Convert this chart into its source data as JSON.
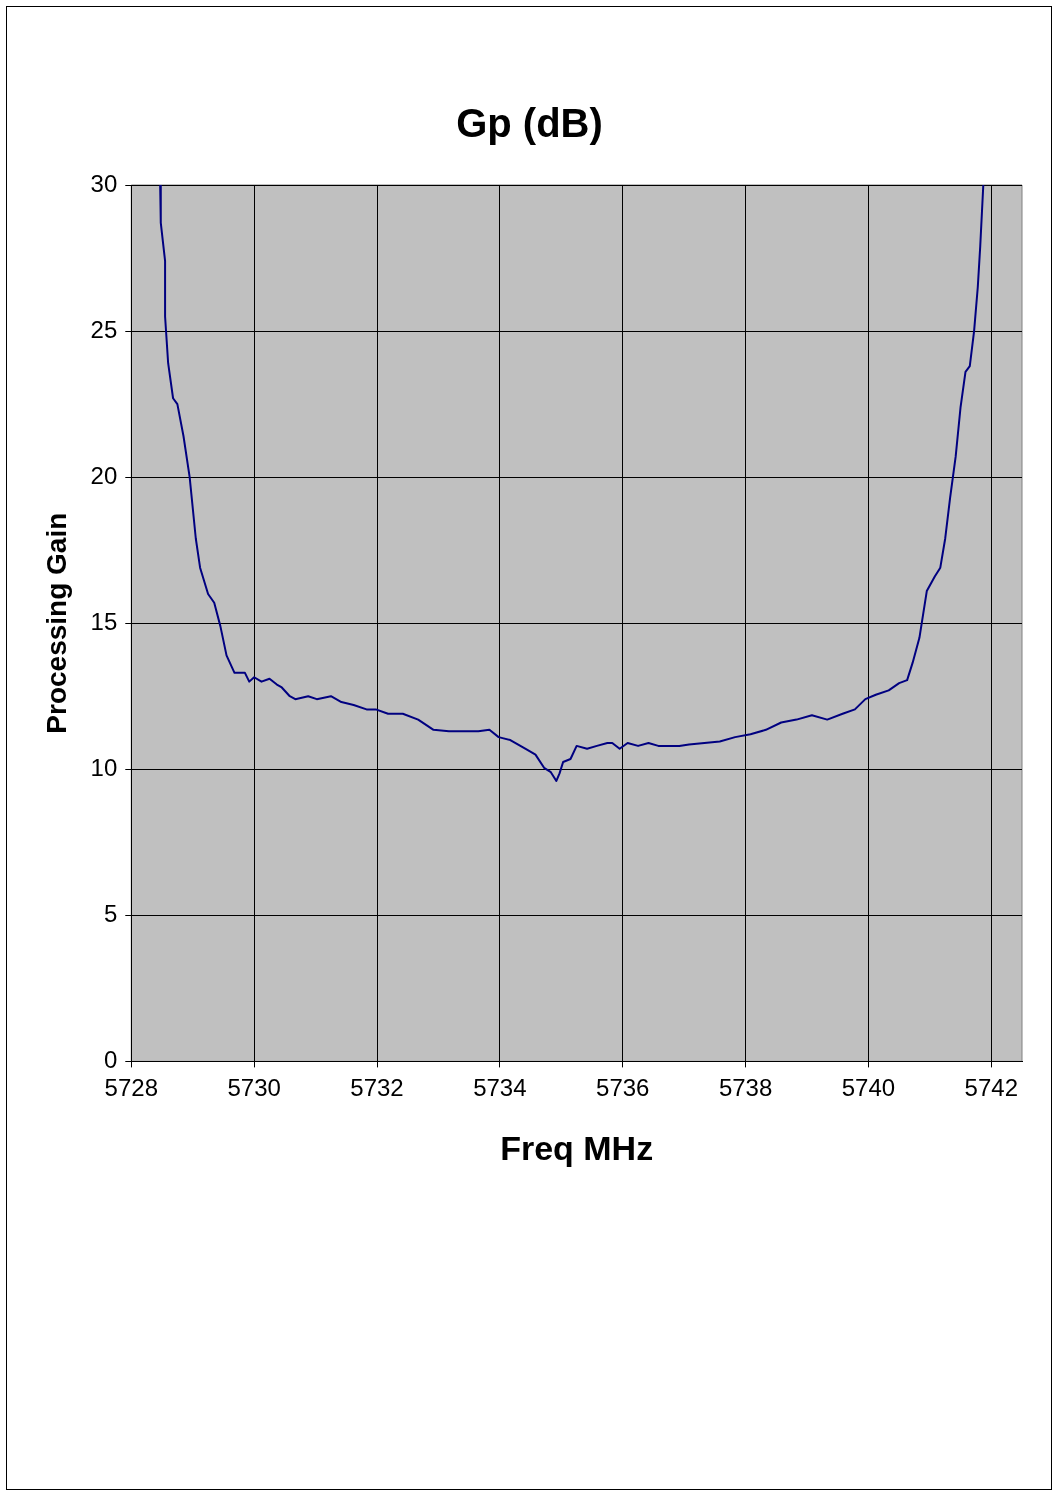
{
  "chart_data": {
    "type": "line",
    "title": "Gp (dB)",
    "xlabel": "Freq MHz",
    "ylabel": "Processing Gain",
    "xlim": [
      5728,
      5742.5
    ],
    "xticks": [
      5728,
      5730,
      5732,
      5734,
      5736,
      5738,
      5740,
      5742
    ],
    "ylim": [
      0,
      30
    ],
    "yticks": [
      0,
      5,
      10,
      15,
      20,
      25,
      30
    ],
    "grid": true,
    "legend": false,
    "marker": "none",
    "line_style": "solid",
    "series": [
      {
        "color": "#000080",
        "x": [
          5728.47,
          5728.48,
          5728.55,
          5728.55,
          5728.6,
          5728.68,
          5728.75,
          5728.85,
          5728.95,
          5729.05,
          5729.12,
          5729.25,
          5729.35,
          5729.45,
          5729.55,
          5729.68,
          5729.85,
          5729.92,
          5730.0,
          5730.12,
          5730.25,
          5730.37,
          5730.45,
          5730.58,
          5730.67,
          5730.88,
          5731.02,
          5731.25,
          5731.42,
          5731.62,
          5731.83,
          5731.98,
          5732.18,
          5732.42,
          5732.67,
          5732.92,
          5733.17,
          5733.42,
          5733.65,
          5733.83,
          5733.98,
          5734.17,
          5734.42,
          5734.58,
          5734.72,
          5734.83,
          5734.92,
          5734.97,
          5735.03,
          5735.15,
          5735.25,
          5735.42,
          5735.58,
          5735.75,
          5735.83,
          5735.95,
          5736.08,
          5736.25,
          5736.42,
          5736.58,
          5736.92,
          5737.08,
          5737.33,
          5737.58,
          5737.83,
          5738.08,
          5738.33,
          5738.58,
          5738.83,
          5739.08,
          5739.33,
          5739.58,
          5739.78,
          5739.95,
          5740.12,
          5740.33,
          5740.5,
          5740.63,
          5740.72,
          5740.83,
          5740.95,
          5741.08,
          5741.17,
          5741.25,
          5741.33,
          5741.42,
          5741.5,
          5741.58,
          5741.65,
          5741.72,
          5741.78,
          5741.82,
          5741.87
        ],
        "values": [
          30,
          28.7,
          27.4,
          25.5,
          23.9,
          22.7,
          22.5,
          21.4,
          20,
          17.9,
          16.9,
          16.0,
          15.7,
          14.9,
          13.9,
          13.3,
          13.3,
          13.0,
          13.15,
          13.0,
          13.1,
          12.9,
          12.8,
          12.5,
          12.4,
          12.5,
          12.4,
          12.5,
          12.3,
          12.2,
          12.05,
          12.05,
          11.9,
          11.9,
          11.7,
          11.35,
          11.3,
          11.3,
          11.3,
          11.35,
          11.1,
          11.0,
          10.7,
          10.5,
          10.05,
          9.9,
          9.6,
          9.85,
          10.25,
          10.35,
          10.8,
          10.7,
          10.8,
          10.9,
          10.9,
          10.7,
          10.9,
          10.8,
          10.9,
          10.8,
          10.8,
          10.85,
          10.9,
          10.95,
          11.1,
          11.2,
          11.35,
          11.6,
          11.7,
          11.85,
          11.7,
          11.9,
          12.05,
          12.4,
          12.55,
          12.7,
          12.95,
          13.05,
          13.65,
          14.5,
          16.1,
          16.6,
          16.9,
          17.9,
          19.3,
          20.7,
          22.4,
          23.6,
          23.8,
          25.0,
          26.5,
          27.9,
          30
        ]
      }
    ]
  }
}
